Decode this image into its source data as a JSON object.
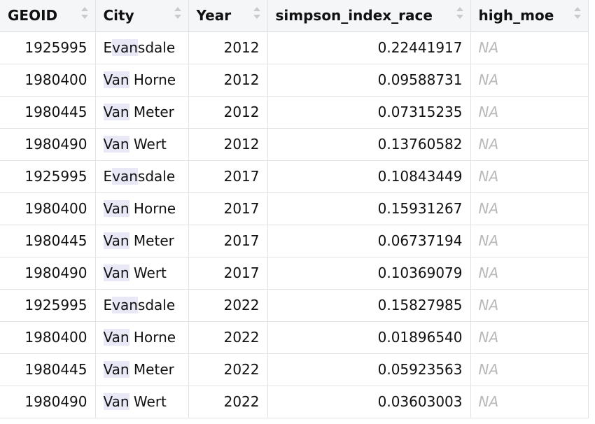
{
  "table": {
    "headers": [
      "GEOID",
      "City",
      "Year",
      "simpson_index_race",
      "high_moe"
    ],
    "highlight": "van",
    "rows": [
      [
        "1925995",
        "Evansdale",
        "2012",
        "0.22441917",
        "NA"
      ],
      [
        "1980400",
        "Van Horne",
        "2012",
        "0.09588731",
        "NA"
      ],
      [
        "1980445",
        "Van Meter",
        "2012",
        "0.07315235",
        "NA"
      ],
      [
        "1980490",
        "Van Wert",
        "2012",
        "0.13760582",
        "NA"
      ],
      [
        "1925995",
        "Evansdale",
        "2017",
        "0.10843449",
        "NA"
      ],
      [
        "1980400",
        "Van Horne",
        "2017",
        "0.15931267",
        "NA"
      ],
      [
        "1980445",
        "Van Meter",
        "2017",
        "0.06737194",
        "NA"
      ],
      [
        "1980490",
        "Van Wert",
        "2017",
        "0.10369079",
        "NA"
      ],
      [
        "1925995",
        "Evansdale",
        "2022",
        "0.15827985",
        "NA"
      ],
      [
        "1980400",
        "Van Horne",
        "2022",
        "0.01896540",
        "NA"
      ],
      [
        "1980445",
        "Van Meter",
        "2022",
        "0.05923563",
        "NA"
      ],
      [
        "1980490",
        "Van Wert",
        "2022",
        "0.03603003",
        "NA"
      ]
    ]
  }
}
